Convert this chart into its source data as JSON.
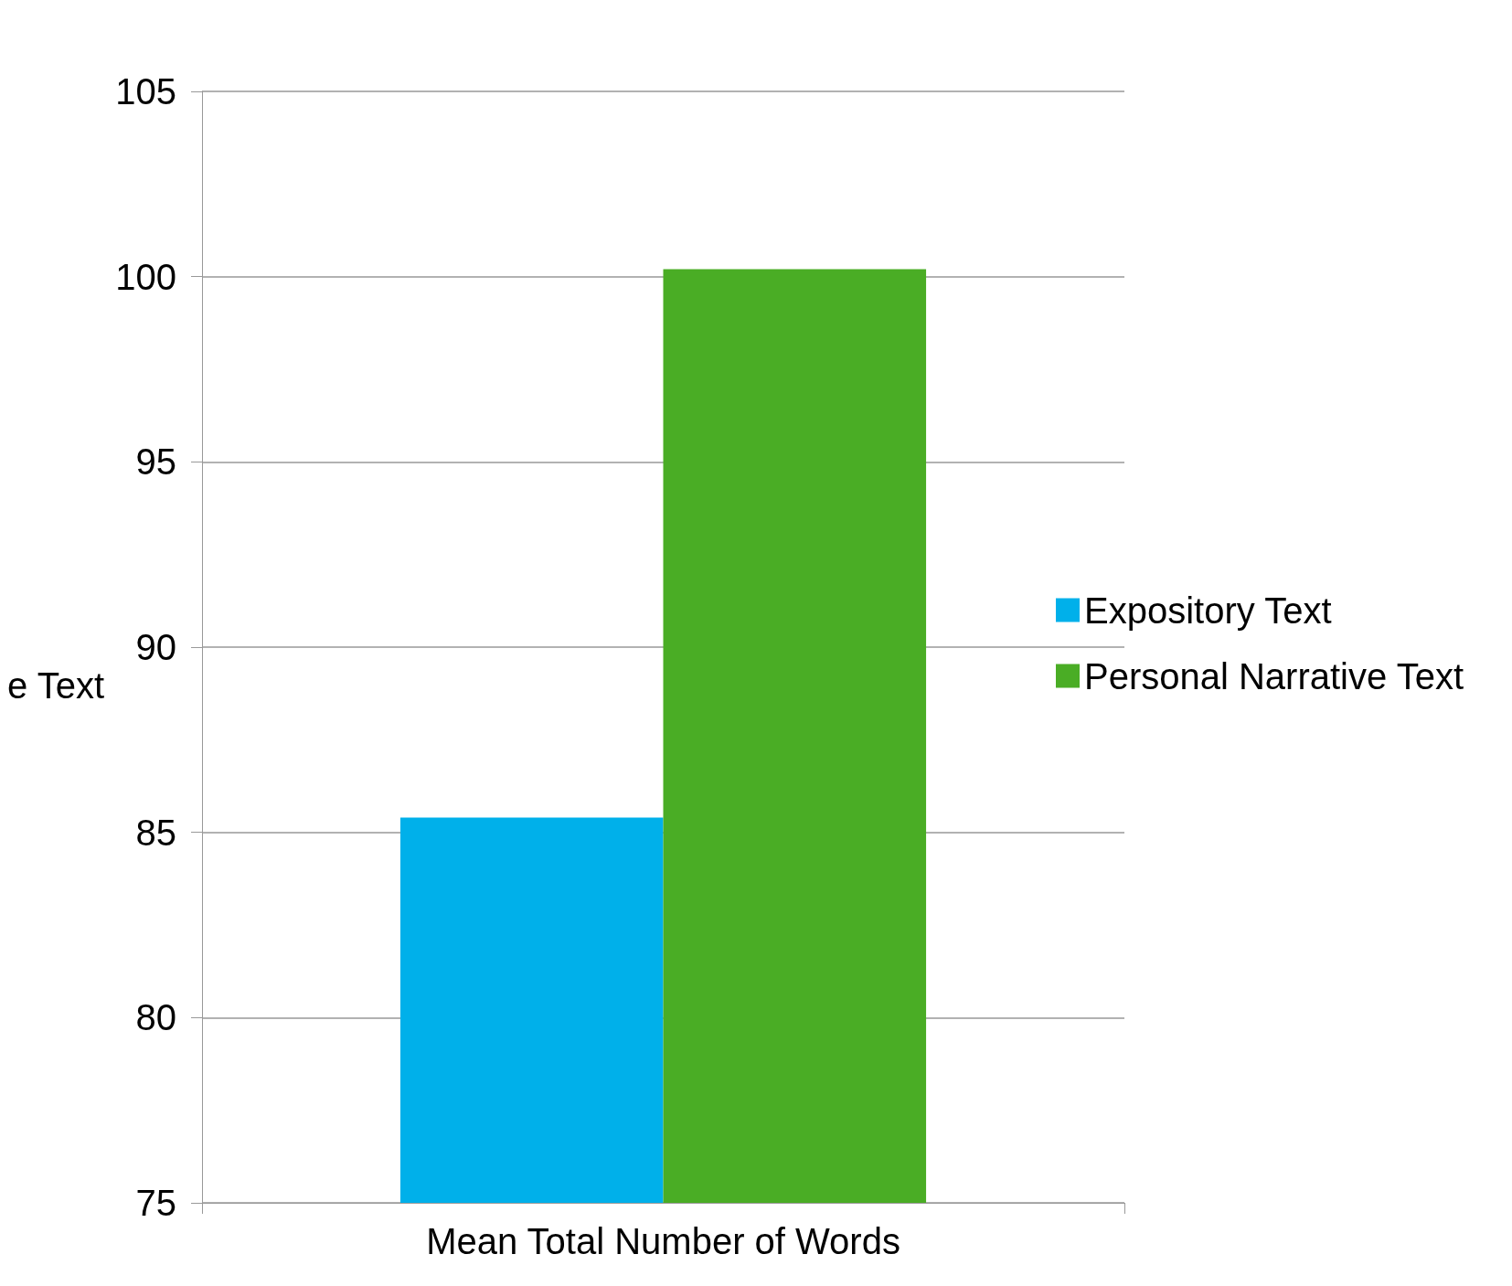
{
  "chart_data": {
    "type": "bar",
    "categories": [
      "Mean Total Number of Words"
    ],
    "series": [
      {
        "name": "Expository Text",
        "color": "#00b0ea",
        "values": [
          85.4
        ]
      },
      {
        "name": "Personal Narrative Text",
        "color": "#4aad25",
        "values": [
          100.2
        ]
      }
    ],
    "ylim": [
      75,
      105
    ],
    "yticks": [
      75,
      80,
      85,
      90,
      95,
      100,
      105
    ],
    "grid": "y",
    "legend": "right",
    "annotations": [
      "e Text"
    ]
  }
}
